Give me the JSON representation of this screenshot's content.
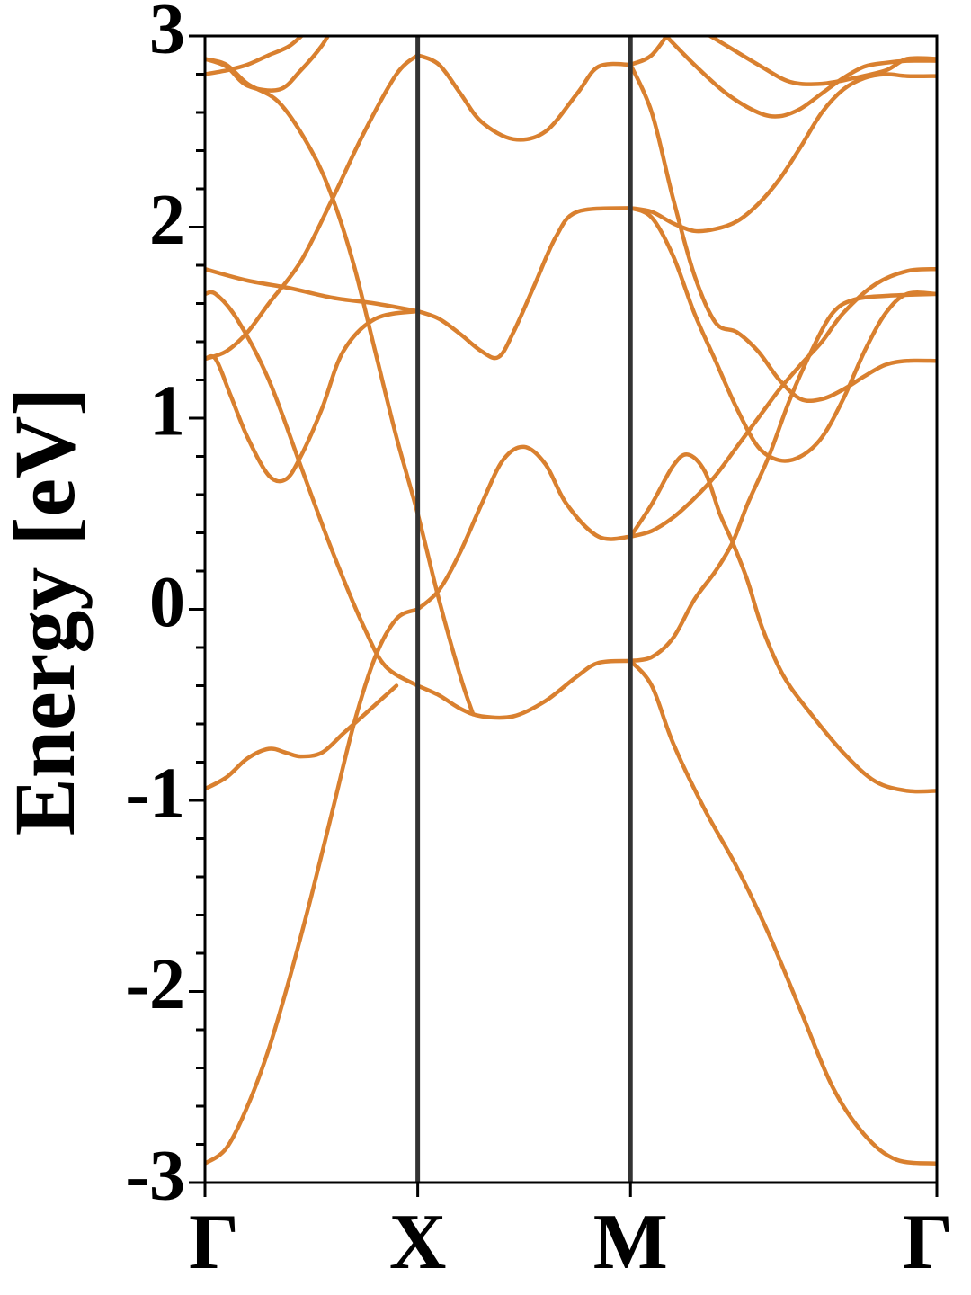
{
  "chart_data": {
    "type": "line",
    "title": "",
    "xlabel": "",
    "ylabel": "Energy [eV]",
    "ylim": [
      -3,
      3
    ],
    "xlim": [
      0,
      3.44
    ],
    "grid": false,
    "legend": "none",
    "x_ticks": [
      {
        "x": 0,
        "label": "Γ"
      },
      {
        "x": 1.0,
        "label": "X"
      },
      {
        "x": 2.0,
        "label": "M"
      },
      {
        "x": 3.44,
        "label": "Γ"
      }
    ],
    "y_ticks": [
      {
        "y": 3,
        "label": "3"
      },
      {
        "y": 2,
        "label": "2"
      },
      {
        "y": 1,
        "label": "1"
      },
      {
        "y": 0,
        "label": "0"
      },
      {
        "y": -1,
        "label": "-1"
      },
      {
        "y": -2,
        "label": "-2"
      },
      {
        "y": -3,
        "label": "-3"
      }
    ],
    "y_minor_step": 0.2,
    "line_color": "#d9802f",
    "vline_color": "#333333",
    "series": [
      {
        "points": [
          [
            0,
            -2.9
          ],
          [
            0.1,
            -2.82
          ],
          [
            0.2,
            -2.6
          ],
          [
            0.3,
            -2.3
          ],
          [
            0.4,
            -1.92
          ],
          [
            0.5,
            -1.5
          ],
          [
            0.6,
            -1.05
          ],
          [
            0.7,
            -0.6
          ],
          [
            0.8,
            -0.25
          ],
          [
            0.9,
            -0.05
          ],
          [
            1.0,
            0.0
          ]
        ]
      },
      {
        "points": [
          [
            0,
            -0.94
          ],
          [
            0.1,
            -0.88
          ],
          [
            0.2,
            -0.78
          ],
          [
            0.3,
            -0.73
          ],
          [
            0.38,
            -0.75
          ],
          [
            0.45,
            -0.77
          ],
          [
            0.55,
            -0.75
          ],
          [
            0.65,
            -0.65
          ],
          [
            0.75,
            -0.55
          ],
          [
            0.9,
            -0.4
          ]
        ]
      },
      {
        "points": [
          [
            0,
            2.8
          ],
          [
            0.1,
            2.82
          ],
          [
            0.2,
            2.85
          ],
          [
            0.3,
            2.9
          ],
          [
            0.4,
            2.95
          ],
          [
            0.5,
            3.05
          ]
        ]
      },
      {
        "points": [
          [
            0,
            2.88
          ],
          [
            0.1,
            2.85
          ],
          [
            0.2,
            2.75
          ],
          [
            0.35,
            2.65
          ],
          [
            0.5,
            2.4
          ],
          [
            0.6,
            2.15
          ],
          [
            0.7,
            1.8
          ],
          [
            0.8,
            1.35
          ],
          [
            0.9,
            0.9
          ],
          [
            1.0,
            0.5
          ],
          [
            1.1,
            0.05
          ],
          [
            1.2,
            -0.35
          ],
          [
            1.26,
            -0.55
          ]
        ]
      },
      {
        "points": [
          [
            0,
            2.88
          ],
          [
            0.1,
            2.84
          ],
          [
            0.2,
            2.74
          ],
          [
            0.35,
            2.72
          ],
          [
            0.45,
            2.82
          ],
          [
            0.55,
            2.95
          ],
          [
            0.6,
            3.05
          ]
        ]
      },
      {
        "points": [
          [
            0,
            1.65
          ],
          [
            0.05,
            1.65
          ],
          [
            0.15,
            1.52
          ],
          [
            0.3,
            1.2
          ],
          [
            0.45,
            0.75
          ],
          [
            0.6,
            0.3
          ],
          [
            0.75,
            -0.1
          ],
          [
            0.85,
            -0.3
          ],
          [
            1.0,
            -0.4
          ]
        ]
      },
      {
        "points": [
          [
            0,
            1.78
          ],
          [
            0.2,
            1.72
          ],
          [
            0.4,
            1.68
          ],
          [
            0.6,
            1.63
          ],
          [
            0.8,
            1.6
          ],
          [
            1.0,
            1.56
          ]
        ]
      },
      {
        "points": [
          [
            0,
            1.31
          ],
          [
            0.05,
            1.31
          ],
          [
            0.12,
            1.12
          ],
          [
            0.2,
            0.9
          ],
          [
            0.3,
            0.7
          ],
          [
            0.38,
            0.68
          ],
          [
            0.45,
            0.8
          ],
          [
            0.55,
            1.05
          ],
          [
            0.65,
            1.35
          ],
          [
            0.8,
            1.52
          ],
          [
            1.0,
            1.56
          ]
        ]
      },
      {
        "points": [
          [
            0,
            1.31
          ],
          [
            0.1,
            1.35
          ],
          [
            0.2,
            1.45
          ],
          [
            0.3,
            1.6
          ],
          [
            0.45,
            1.82
          ],
          [
            0.6,
            2.15
          ],
          [
            0.75,
            2.5
          ],
          [
            0.9,
            2.8
          ],
          [
            1.0,
            2.9
          ]
        ]
      },
      {
        "points": [
          [
            1.0,
            2.9
          ],
          [
            1.1,
            2.85
          ],
          [
            1.2,
            2.7
          ],
          [
            1.3,
            2.55
          ],
          [
            1.45,
            2.46
          ],
          [
            1.6,
            2.5
          ],
          [
            1.75,
            2.7
          ],
          [
            1.85,
            2.84
          ],
          [
            2.0,
            2.85
          ]
        ]
      },
      {
        "points": [
          [
            1.0,
            0.0
          ],
          [
            1.1,
            0.1
          ],
          [
            1.2,
            0.3
          ],
          [
            1.3,
            0.55
          ],
          [
            1.4,
            0.78
          ],
          [
            1.5,
            0.85
          ],
          [
            1.6,
            0.76
          ],
          [
            1.7,
            0.55
          ],
          [
            1.85,
            0.38
          ],
          [
            2.0,
            0.38
          ]
        ]
      },
      {
        "points": [
          [
            1.0,
            1.56
          ],
          [
            1.1,
            1.52
          ],
          [
            1.2,
            1.44
          ],
          [
            1.3,
            1.35
          ],
          [
            1.38,
            1.32
          ],
          [
            1.45,
            1.45
          ],
          [
            1.55,
            1.7
          ],
          [
            1.65,
            1.95
          ],
          [
            1.75,
            2.08
          ],
          [
            2.0,
            2.1
          ]
        ]
      },
      {
        "points": [
          [
            1.0,
            -0.4
          ],
          [
            1.1,
            -0.45
          ],
          [
            1.2,
            -0.52
          ],
          [
            1.3,
            -0.56
          ],
          [
            1.45,
            -0.56
          ],
          [
            1.6,
            -0.48
          ],
          [
            1.75,
            -0.35
          ],
          [
            1.85,
            -0.28
          ],
          [
            2.0,
            -0.27
          ]
        ]
      },
      {
        "points": [
          [
            2.0,
            2.85
          ],
          [
            2.1,
            2.6
          ],
          [
            2.2,
            2.15
          ],
          [
            2.3,
            1.75
          ],
          [
            2.4,
            1.5
          ],
          [
            2.5,
            1.45
          ],
          [
            2.6,
            1.35
          ],
          [
            2.7,
            1.2
          ],
          [
            2.8,
            1.1
          ],
          [
            2.9,
            1.1
          ],
          [
            3.0,
            1.15
          ],
          [
            3.1,
            1.22
          ],
          [
            3.2,
            1.28
          ],
          [
            3.3,
            1.3
          ],
          [
            3.44,
            1.3
          ]
        ]
      },
      {
        "points": [
          [
            2.0,
            2.1
          ],
          [
            2.1,
            2.05
          ],
          [
            2.2,
            1.85
          ],
          [
            2.3,
            1.55
          ],
          [
            2.4,
            1.3
          ],
          [
            2.5,
            1.05
          ],
          [
            2.6,
            0.85
          ],
          [
            2.7,
            0.78
          ],
          [
            2.8,
            0.8
          ],
          [
            2.9,
            0.9
          ],
          [
            3.0,
            1.1
          ],
          [
            3.1,
            1.35
          ],
          [
            3.2,
            1.55
          ],
          [
            3.3,
            1.65
          ],
          [
            3.44,
            1.65
          ]
        ]
      },
      {
        "points": [
          [
            2.0,
            2.85
          ],
          [
            2.1,
            2.9
          ],
          [
            2.2,
            3.05
          ]
        ]
      },
      {
        "points": [
          [
            2.15,
            3.02
          ],
          [
            2.3,
            2.85
          ],
          [
            2.45,
            2.7
          ],
          [
            2.6,
            2.6
          ],
          [
            2.7,
            2.58
          ],
          [
            2.8,
            2.62
          ],
          [
            2.9,
            2.7
          ],
          [
            3.0,
            2.78
          ],
          [
            3.1,
            2.84
          ],
          [
            3.2,
            2.86
          ],
          [
            3.3,
            2.87
          ],
          [
            3.44,
            2.87
          ]
        ]
      },
      {
        "points": [
          [
            2.0,
            2.1
          ],
          [
            2.1,
            2.08
          ],
          [
            2.2,
            2.02
          ],
          [
            2.3,
            1.98
          ],
          [
            2.4,
            1.99
          ],
          [
            2.5,
            2.03
          ],
          [
            2.6,
            2.12
          ],
          [
            2.7,
            2.25
          ],
          [
            2.8,
            2.42
          ],
          [
            2.9,
            2.6
          ],
          [
            3.0,
            2.72
          ],
          [
            3.1,
            2.78
          ],
          [
            3.2,
            2.8
          ],
          [
            3.3,
            2.79
          ],
          [
            3.44,
            2.79
          ]
        ]
      },
      {
        "points": [
          [
            2.3,
            3.05
          ],
          [
            2.45,
            2.95
          ],
          [
            2.6,
            2.85
          ],
          [
            2.75,
            2.76
          ],
          [
            2.9,
            2.75
          ],
          [
            3.05,
            2.78
          ],
          [
            3.2,
            2.82
          ],
          [
            3.3,
            2.88
          ],
          [
            3.44,
            2.88
          ]
        ]
      },
      {
        "points": [
          [
            2.0,
            0.38
          ],
          [
            2.1,
            0.55
          ],
          [
            2.2,
            0.75
          ],
          [
            2.27,
            0.81
          ],
          [
            2.35,
            0.72
          ],
          [
            2.42,
            0.5
          ],
          [
            2.48,
            0.35
          ],
          [
            2.55,
            0.15
          ],
          [
            2.62,
            -0.1
          ],
          [
            2.72,
            -0.35
          ],
          [
            2.85,
            -0.55
          ],
          [
            3.0,
            -0.75
          ],
          [
            3.15,
            -0.9
          ],
          [
            3.3,
            -0.95
          ],
          [
            3.44,
            -0.95
          ]
        ]
      },
      {
        "points": [
          [
            2.0,
            0.38
          ],
          [
            2.1,
            0.41
          ],
          [
            2.2,
            0.48
          ],
          [
            2.3,
            0.58
          ],
          [
            2.4,
            0.7
          ],
          [
            2.5,
            0.85
          ],
          [
            2.6,
            1.0
          ],
          [
            2.7,
            1.15
          ],
          [
            2.8,
            1.28
          ],
          [
            2.9,
            1.4
          ],
          [
            3.0,
            1.55
          ],
          [
            3.15,
            1.7
          ],
          [
            3.3,
            1.77
          ],
          [
            3.44,
            1.78
          ]
        ]
      },
      {
        "points": [
          [
            2.0,
            -0.27
          ],
          [
            2.1,
            -0.25
          ],
          [
            2.2,
            -0.15
          ],
          [
            2.3,
            0.05
          ],
          [
            2.4,
            0.2
          ],
          [
            2.48,
            0.35
          ],
          [
            2.55,
            0.55
          ],
          [
            2.65,
            0.8
          ],
          [
            2.75,
            1.1
          ],
          [
            2.85,
            1.35
          ],
          [
            2.95,
            1.55
          ],
          [
            3.05,
            1.62
          ],
          [
            3.2,
            1.64
          ],
          [
            3.44,
            1.65
          ]
        ]
      },
      {
        "points": [
          [
            2.0,
            -0.27
          ],
          [
            2.1,
            -0.4
          ],
          [
            2.2,
            -0.7
          ],
          [
            2.35,
            -1.05
          ],
          [
            2.5,
            -1.35
          ],
          [
            2.65,
            -1.7
          ],
          [
            2.8,
            -2.1
          ],
          [
            2.95,
            -2.5
          ],
          [
            3.1,
            -2.75
          ],
          [
            3.25,
            -2.88
          ],
          [
            3.44,
            -2.9
          ]
        ]
      }
    ]
  }
}
